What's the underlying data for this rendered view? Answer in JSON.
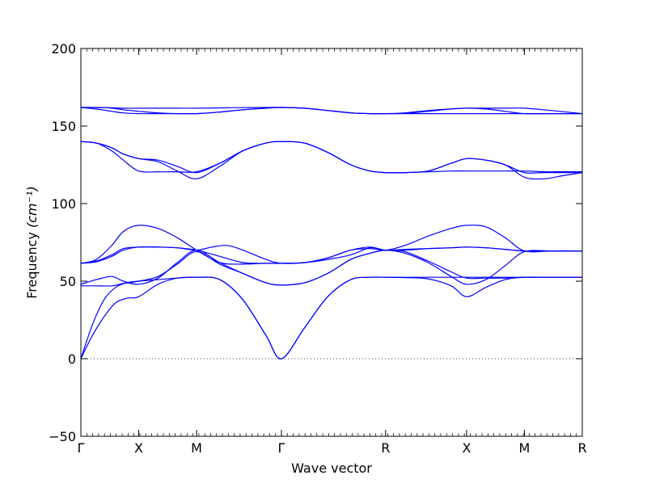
{
  "chart_data": {
    "type": "line",
    "title": "",
    "xlabel": "Wave vector",
    "ylabel": "Frequency",
    "ylabel_unit_math": "(cm⁻¹)",
    "ylim": [
      -50,
      200
    ],
    "yticks": [
      -50,
      0,
      50,
      100,
      150,
      200
    ],
    "ytick_labels": [
      "−50",
      "0",
      "50",
      "100",
      "150",
      "200"
    ],
    "xlim": [
      0,
      6.5
    ],
    "xticks": [
      {
        "pos": 0.0,
        "label": "Γ"
      },
      {
        "pos": 0.75,
        "label": "X"
      },
      {
        "pos": 1.5,
        "label": "M"
      },
      {
        "pos": 2.6,
        "label": "Γ"
      },
      {
        "pos": 3.95,
        "label": "R"
      },
      {
        "pos": 5.0,
        "label": "X"
      },
      {
        "pos": 5.75,
        "label": "M"
      },
      {
        "pos": 6.5,
        "label": "R"
      }
    ],
    "zero_line": true,
    "line_color": "#0000ff",
    "series": [
      {
        "x": [
          0,
          0.15,
          0.3,
          0.45,
          0.6,
          0.75,
          1.0,
          1.25,
          1.5,
          1.8,
          2.1,
          2.4,
          2.6,
          2.9,
          3.2,
          3.5,
          3.75,
          3.95,
          4.2,
          4.5,
          4.8,
          5.0,
          5.25,
          5.5,
          5.75,
          6.1,
          6.5
        ],
        "y": [
          0,
          15,
          27,
          36,
          39,
          40,
          48,
          52,
          52.5,
          51,
          38,
          15,
          0,
          20,
          40,
          51,
          52.5,
          52.5,
          52.5,
          52.5,
          52.5,
          52.5,
          52.5,
          52.5,
          52.5,
          52.5,
          52.5
        ]
      },
      {
        "x": [
          0,
          0.15,
          0.3,
          0.45,
          0.6,
          0.75,
          1.0,
          1.25,
          1.5,
          1.8,
          2.1,
          2.4,
          2.6,
          2.9,
          3.2,
          3.5,
          3.75,
          3.95,
          4.2,
          4.5,
          4.8,
          5.0,
          5.25,
          5.5,
          5.75,
          6.1,
          6.5
        ],
        "y": [
          0,
          22,
          38,
          46,
          49,
          50,
          51,
          52,
          52.5,
          51,
          38,
          15,
          0,
          20,
          40,
          51,
          52.5,
          52.5,
          52.3,
          51.5,
          47,
          40,
          46,
          51,
          52.5,
          52.5,
          52.5
        ]
      },
      {
        "x": [
          0,
          0.2,
          0.4,
          0.55,
          0.75,
          1.0,
          1.25,
          1.5,
          1.8,
          2.1,
          2.4,
          2.6,
          2.9,
          3.2,
          3.5,
          3.75,
          3.95,
          4.2,
          4.5,
          4.8,
          5.0,
          5.25,
          5.5,
          5.75,
          6.1,
          6.5
        ],
        "y": [
          48,
          51,
          53,
          50,
          48,
          52,
          62,
          70,
          62,
          55,
          49,
          47.5,
          49,
          55,
          64,
          68,
          70,
          69,
          63,
          56,
          52,
          52,
          52,
          52.5,
          52.5,
          52.5
        ]
      },
      {
        "x": [
          0,
          0.2,
          0.4,
          0.55,
          0.75,
          1.0,
          1.25,
          1.5,
          1.8,
          2.1,
          2.4,
          2.6,
          2.9,
          3.2,
          3.5,
          3.75,
          3.95,
          4.2,
          4.5,
          4.8,
          5.0,
          5.25,
          5.5,
          5.75,
          6.1,
          6.5
        ],
        "y": [
          47,
          47,
          47,
          48.5,
          50,
          53,
          61,
          69,
          61,
          55,
          49,
          47.5,
          49,
          55,
          64,
          68,
          70,
          68,
          62,
          53,
          48,
          51,
          60,
          69,
          69.5,
          69.5
        ]
      },
      {
        "x": [
          0,
          0.2,
          0.4,
          0.55,
          0.75,
          1.0,
          1.25,
          1.5,
          1.8,
          2.1,
          2.4,
          2.6,
          2.9,
          3.2,
          3.5,
          3.75,
          3.95,
          4.2,
          4.5,
          4.8,
          5.0,
          5.25,
          5.5,
          5.75,
          6.1,
          6.5
        ],
        "y": [
          61.5,
          63,
          67,
          71,
          72,
          72,
          71.5,
          70,
          66,
          62,
          61.5,
          61.5,
          62,
          65,
          70,
          72,
          70,
          70.5,
          71,
          71.5,
          72,
          71.5,
          70.5,
          69.5,
          69.5,
          69.5
        ]
      },
      {
        "x": [
          0,
          0.2,
          0.4,
          0.55,
          0.75,
          1.0,
          1.25,
          1.5,
          1.7,
          1.9,
          2.1,
          2.4,
          2.6,
          2.9,
          3.2,
          3.5,
          3.75,
          3.95,
          4.2,
          4.5,
          4.8,
          5.0,
          5.25,
          5.5,
          5.75,
          6.1,
          6.5
        ],
        "y": [
          61.5,
          62.5,
          66,
          70,
          72,
          72,
          71.5,
          70,
          72,
          73,
          70,
          64,
          61.5,
          62,
          64,
          67,
          71.5,
          70,
          70,
          71,
          71.5,
          72,
          71.5,
          70.5,
          69.5,
          69.5,
          69.5
        ]
      },
      {
        "x": [
          0,
          0.2,
          0.4,
          0.55,
          0.75,
          1.0,
          1.25,
          1.5,
          1.8,
          2.1,
          2.4,
          2.6,
          2.9,
          3.2,
          3.5,
          3.75,
          3.95,
          4.2,
          4.5,
          4.8,
          5.0,
          5.25,
          5.5,
          5.75,
          6.1,
          6.5
        ],
        "y": [
          61.5,
          64,
          73,
          82,
          86,
          84,
          78,
          70,
          62,
          61,
          61.5,
          61.5,
          62,
          65,
          70,
          71,
          70,
          73,
          79,
          84,
          86,
          85,
          78,
          69.5,
          69.5,
          69.5
        ]
      },
      {
        "x": [
          0,
          0.2,
          0.4,
          0.55,
          0.75,
          1.0,
          1.25,
          1.5,
          1.8,
          2.1,
          2.4,
          2.6,
          2.9,
          3.2,
          3.5,
          3.75,
          3.95,
          4.2,
          4.5,
          4.8,
          5.0,
          5.25,
          5.5,
          5.75,
          6.0,
          6.25,
          6.5
        ],
        "y": [
          140,
          139,
          136,
          132,
          129,
          128,
          124,
          120,
          126,
          134,
          139,
          140,
          139,
          133,
          125,
          121,
          120,
          120,
          121,
          126,
          129,
          128,
          125,
          120,
          120,
          120,
          120
        ]
      },
      {
        "x": [
          0,
          0.2,
          0.4,
          0.55,
          0.75,
          1.0,
          1.25,
          1.5,
          1.8,
          2.1,
          2.4,
          2.6,
          2.9,
          3.2,
          3.5,
          3.75,
          3.95,
          4.2,
          4.5,
          4.8,
          5.0,
          5.25,
          5.5,
          5.75,
          6.0,
          6.25,
          6.5
        ],
        "y": [
          140,
          139,
          134,
          128,
          121,
          120.5,
          120.5,
          120.5,
          126,
          134,
          139,
          140,
          139,
          133,
          125,
          121,
          120,
          120,
          120.5,
          121,
          121,
          121,
          121,
          121,
          120.5,
          120.5,
          120.5
        ]
      },
      {
        "x": [
          0,
          0.2,
          0.4,
          0.55,
          0.75,
          1.0,
          1.25,
          1.5,
          1.8,
          2.1,
          2.4,
          2.6,
          2.9,
          3.2,
          3.5,
          3.75,
          3.95,
          4.2,
          4.5,
          4.8,
          5.0,
          5.25,
          5.5,
          5.75,
          6.0,
          6.25,
          6.5
        ],
        "y": [
          140,
          139,
          136,
          132,
          129,
          127,
          121,
          116,
          124,
          134,
          139,
          140,
          139,
          133,
          125,
          121,
          120,
          120,
          121,
          126,
          129,
          128,
          125,
          117,
          116,
          118,
          120
        ]
      },
      {
        "x": [
          0,
          0.2,
          0.4,
          0.55,
          0.75,
          1.0,
          1.25,
          1.5,
          1.8,
          2.1,
          2.4,
          2.6,
          2.9,
          3.2,
          3.5,
          3.75,
          3.95,
          4.2,
          4.5,
          4.8,
          5.0,
          5.25,
          5.5,
          5.75,
          6.1,
          6.5
        ],
        "y": [
          162,
          162,
          161.8,
          161.5,
          161.5,
          161.5,
          161.5,
          161.5,
          161.7,
          161.9,
          162,
          162,
          161.5,
          160,
          158.5,
          158,
          158,
          158.2,
          159.5,
          161,
          161.5,
          161.5,
          161.5,
          161.5,
          160,
          158
        ]
      },
      {
        "x": [
          0,
          0.2,
          0.4,
          0.55,
          0.75,
          1.0,
          1.25,
          1.5,
          1.8,
          2.1,
          2.4,
          2.6,
          2.9,
          3.2,
          3.5,
          3.75,
          3.95,
          4.2,
          4.5,
          4.8,
          5.0,
          5.25,
          5.5,
          5.75,
          6.1,
          6.5
        ],
        "y": [
          162,
          161,
          159.5,
          158.5,
          158,
          158,
          158,
          158,
          159,
          160.5,
          161.5,
          162,
          161.5,
          160,
          158.5,
          158,
          158,
          158,
          158,
          158,
          158,
          158,
          158,
          158,
          158,
          158
        ]
      },
      {
        "x": [
          0,
          0.2,
          0.4,
          0.55,
          0.75,
          1.0,
          1.25,
          1.5,
          1.8,
          2.1,
          2.4,
          2.6,
          2.9,
          3.2,
          3.5,
          3.75,
          3.95,
          4.2,
          4.5,
          4.8,
          5.0,
          5.25,
          5.5,
          5.75,
          6.1,
          6.5
        ],
        "y": [
          162,
          162,
          161.5,
          160.5,
          159.5,
          158.5,
          158,
          158,
          159,
          160.5,
          161.5,
          162,
          161.5,
          160,
          158.5,
          158,
          158,
          158.5,
          160,
          161,
          161.5,
          161,
          159.5,
          158,
          158,
          158
        ]
      }
    ]
  }
}
